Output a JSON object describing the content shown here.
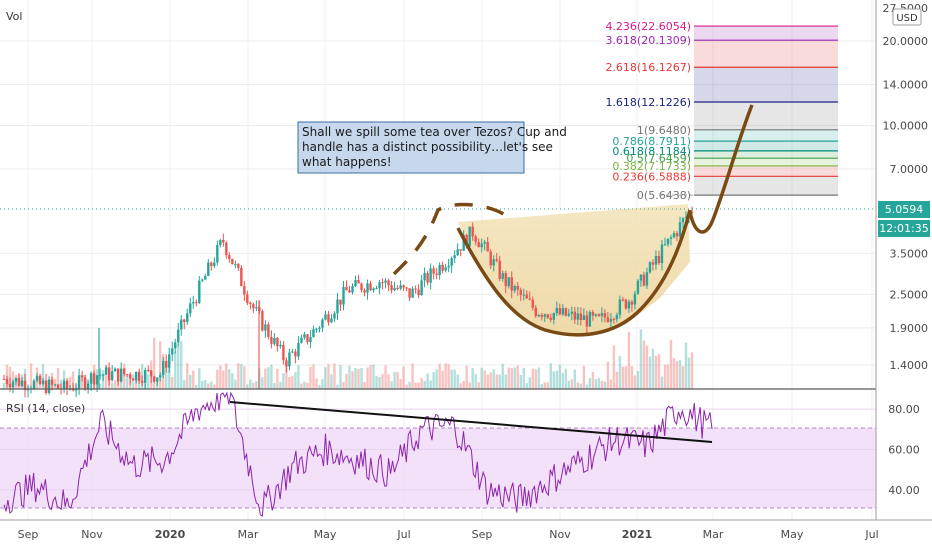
{
  "chart_data": [
    {
      "type": "candlestick",
      "panel_label": "Vol",
      "currency": "USD",
      "y_scale": "log",
      "ylim": [
        1.15,
        28
      ],
      "x_tick_labels": [
        "Sep",
        "Nov",
        "2020",
        "Mar",
        "May",
        "Jul",
        "Sep",
        "Nov",
        "2021",
        "Mar",
        "May",
        "Jul"
      ],
      "y_tick_labels": [
        "27.5000",
        "20.0000",
        "14.0000",
        "10.0000",
        "7.0000",
        "5.0594",
        "3.5000",
        "2.5000",
        "1.9000",
        "1.4000"
      ],
      "y_ticks": [
        20.0,
        14.0,
        10.0,
        7.0,
        3.5,
        2.5,
        1.9,
        1.4
      ],
      "last_price": {
        "value": 5.0594,
        "label": "5.0594",
        "countdown": "12:01:35",
        "color": "#26a69a"
      },
      "series": [
        {
          "price_path": [
            [
              "Aug 2019",
              1.25
            ],
            [
              "Sep 2019",
              1.2
            ],
            [
              "Oct 2019",
              1.15
            ],
            [
              "Nov 2019",
              1.3
            ],
            [
              "Dec 2019",
              1.3
            ],
            [
              "Jan 2020",
              1.3
            ],
            [
              "Feb 2020",
              2.3
            ],
            [
              "Late Feb 2020",
              3.9
            ],
            [
              "Mar 2020",
              2.2
            ],
            [
              "Mid Mar 2020",
              1.45
            ],
            [
              "Apr 2020",
              1.9
            ],
            [
              "May 2020",
              2.6
            ],
            [
              "Jun 2020",
              2.8
            ],
            [
              "Jul 2020",
              2.5
            ],
            [
              "Aug 2020",
              3.2
            ],
            [
              "Late Aug 2020",
              4.2
            ],
            [
              "Sep 2020",
              2.8
            ],
            [
              "Oct 2020",
              2.2
            ],
            [
              "Nov 2020",
              2.1
            ],
            [
              "Dec 2020",
              2.0
            ],
            [
              "Jan 2021",
              2.4
            ],
            [
              "Feb 2021",
              3.5
            ],
            [
              "Late Feb 2021",
              5.06
            ]
          ]
        }
      ],
      "fib_levels": [
        {
          "label": "4.236(22.6054)",
          "value": 22.6054,
          "color": "#d81b8c"
        },
        {
          "label": "3.618(20.1309)",
          "value": 20.1309,
          "color": "#9c27b0"
        },
        {
          "label": "2.618(16.1267)",
          "value": 16.1267,
          "color": "#e53935"
        },
        {
          "label": "1.618(12.1226)",
          "value": 12.1226,
          "color": "#1a237e"
        },
        {
          "label": "1(9.6480)",
          "value": 9.648,
          "color": "#757575"
        },
        {
          "label": "0.786(8.7911)",
          "value": 8.7911,
          "color": "#26a69a"
        },
        {
          "label": "0.618(8.1184)",
          "value": 8.1184,
          "color": "#00897b"
        },
        {
          "label": "0.5(7.6459)",
          "value": 7.6459,
          "color": "#43a047"
        },
        {
          "label": "0.382(7.1733)",
          "value": 7.1733,
          "color": "#7cb342"
        },
        {
          "label": "0.236(6.5888)",
          "value": 6.5888,
          "color": "#e53935"
        },
        {
          "label": "0(5.6438)",
          "value": 5.6438,
          "color": "#757575"
        }
      ],
      "annotation": "Shall we spill some tea over Tezos? Cup and handle has a distinct possibility…let's see what happens!"
    },
    {
      "type": "line",
      "title": "RSI (14, close)",
      "ylim": [
        25,
        90
      ],
      "y_tick_labels": [
        "80.00",
        "60.00",
        "40.00"
      ],
      "y_ticks": [
        80,
        60,
        40
      ],
      "bands": [
        30,
        70
      ],
      "series": [
        {
          "values": [
            [
              "Aug 2019",
              35
            ],
            [
              "Sep 2019",
              42
            ],
            [
              "Oct 2019",
              32
            ],
            [
              "Nov 2019",
              73
            ],
            [
              "Dec 2019",
              52
            ],
            [
              "Jan 2020",
              55
            ],
            [
              "Feb 2020",
              80
            ],
            [
              "Late Feb 2020",
              88
            ],
            [
              "Mar 2020",
              30
            ],
            [
              "Apr 2020",
              52
            ],
            [
              "May 2020",
              60
            ],
            [
              "Jun 2020",
              55
            ],
            [
              "Jul 2020",
              48
            ],
            [
              "Aug 2020",
              70
            ],
            [
              "Late Aug 2020",
              72
            ],
            [
              "Sep 2020",
              40
            ],
            [
              "Oct 2020",
              35
            ],
            [
              "Nov 2020",
              45
            ],
            [
              "Dec 2020",
              55
            ],
            [
              "Jan 2021",
              65
            ],
            [
              "Feb 2021",
              62
            ],
            [
              "Late Feb 2021",
              81
            ],
            [
              "End Feb 2021",
              70
            ]
          ]
        }
      ]
    }
  ]
}
